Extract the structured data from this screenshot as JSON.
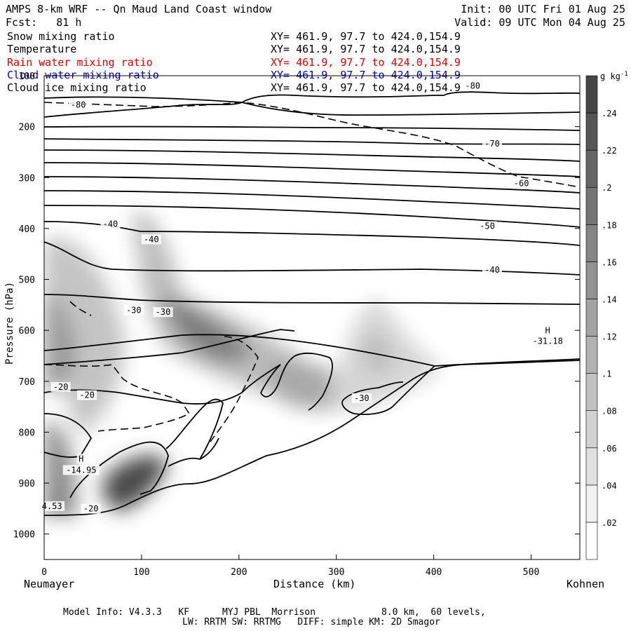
{
  "header": {
    "title": "AMPS 8-km WRF -- Qn Maud Land Coast window",
    "init": "Init: 00 UTC Fri 01 Aug 25",
    "fcst": "Fcst:   81 h",
    "valid": "Valid: 09 UTC Mon 04 Aug 25"
  },
  "fields": [
    {
      "label": "Snow mixing ratio",
      "xy": "XY= 461.9, 97.7 to 424.0,154.9",
      "color": "#000000"
    },
    {
      "label": "Temperature",
      "xy": "XY= 461.9, 97.7 to 424.0,154.9",
      "color": "#000000"
    },
    {
      "label": "Rain water mixing ratio",
      "xy": "XY= 461.9, 97.7 to 424.0,154.9",
      "color": "#e00000"
    },
    {
      "label": "Cloud water mixing ratio",
      "xy": "XY= 461.9, 97.7 to 424.0,154.9",
      "color": "#0000c0"
    },
    {
      "label": "Cloud ice mixing ratio",
      "xy": "XY= 461.9, 97.7 to 424.0,154.9",
      "color": "#000000"
    }
  ],
  "footer": {
    "line1": "Model Info: V4.3.3   KF      MYJ PBL  Morrison            8.0 km,  60 levels,",
    "line2": "LW: RRTM SW: RRTMG   DIFF: simple KM: 2D Smagor"
  },
  "chart_data": {
    "type": "heatmap",
    "title": "AMPS 8-km WRF -- Qn Maud Land Coast window",
    "xlabel": "Distance (km)",
    "ylabel": "Pressure (hPa)",
    "xlim": [
      0,
      550
    ],
    "ylim": [
      1050,
      100
    ],
    "x_ticks": [
      0,
      100,
      200,
      300,
      400,
      500
    ],
    "y_ticks": [
      100,
      200,
      300,
      400,
      500,
      600,
      700,
      800,
      900,
      1000
    ],
    "x_endpoints": {
      "left": "Neumayer",
      "right": "Kohnen"
    },
    "colorbar": {
      "unit": "g kg",
      "unit_exp": "-1",
      "ticks": [
        ".02",
        ".04",
        ".06",
        ".08",
        ".1",
        ".12",
        ".14",
        ".16",
        ".18",
        ".2",
        ".22",
        ".24"
      ],
      "range": [
        0,
        0.26
      ]
    },
    "contour_labels": [
      {
        "text": "-80",
        "x": 35,
        "p": 160
      },
      {
        "text": "-80",
        "x": 440,
        "p": 123
      },
      {
        "text": "-70",
        "x": 460,
        "p": 236
      },
      {
        "text": "-60",
        "x": 490,
        "p": 314
      },
      {
        "text": "-50",
        "x": 455,
        "p": 398
      },
      {
        "text": "-40",
        "x": 68,
        "p": 394
      },
      {
        "text": "-40",
        "x": 110,
        "p": 424
      },
      {
        "text": "-40",
        "x": 460,
        "p": 484
      },
      {
        "text": "-30",
        "x": 92,
        "p": 563
      },
      {
        "text": "-30",
        "x": 122,
        "p": 567
      },
      {
        "text": "-30",
        "x": 326,
        "p": 736
      },
      {
        "text": "-20",
        "x": 17,
        "p": 714
      },
      {
        "text": "-20",
        "x": 44,
        "p": 730
      },
      {
        "text": "-20",
        "x": 48,
        "p": 953
      },
      {
        "text": "H",
        "x": 38,
        "p": 855
      },
      {
        "text": "-14.95",
        "x": 38,
        "p": 877
      },
      {
        "text": "H",
        "x": 517,
        "p": 603
      },
      {
        "text": "-31.18",
        "x": 517,
        "p": 624
      },
      {
        "text": "4.53",
        "x": 8,
        "p": 948
      }
    ]
  }
}
